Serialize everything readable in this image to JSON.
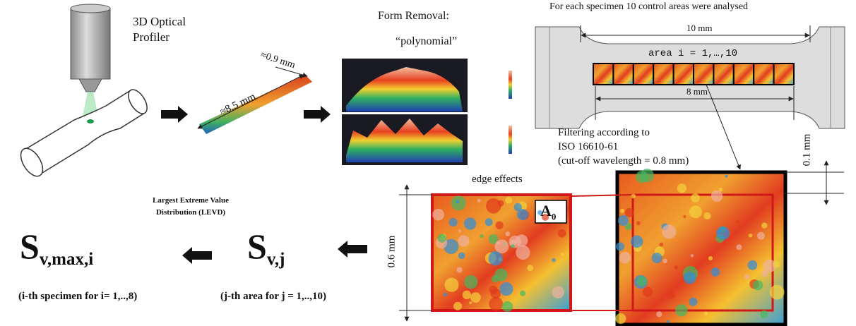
{
  "profiler": {
    "label": "3D Optical Profiler"
  },
  "sample": {
    "length": "≈8.5 mm",
    "width": "≈0.9 mm"
  },
  "form_removal": {
    "title": "Form Removal:",
    "method": "“polynomial”"
  },
  "specimen": {
    "caption": "For each specimen 10 control areas were analysed",
    "total_length": "10 mm",
    "area_label": "area i = 1,…,10",
    "area_span": "8 mm"
  },
  "filtering": {
    "lines": [
      "Filtering according to",
      "ISO 16610-61",
      "(cut-off wavelength = 0.8 mm)"
    ],
    "offset": "0.1 mm"
  },
  "detail": {
    "edge_label": "edge effects",
    "area_symbol": {
      "base": "A",
      "sub": "0"
    },
    "height": "0.6 mm"
  },
  "statistics": {
    "method": "Largest Extreme Value Distribution (LEVD)",
    "per_area": {
      "base": "S",
      "sub": "v,j",
      "note": "(j-th area for j = 1,..,10)"
    },
    "per_specimen": {
      "base": "S",
      "sub": "v,max,i",
      "note": "(i-th specimen for i= 1,..,8)"
    }
  }
}
